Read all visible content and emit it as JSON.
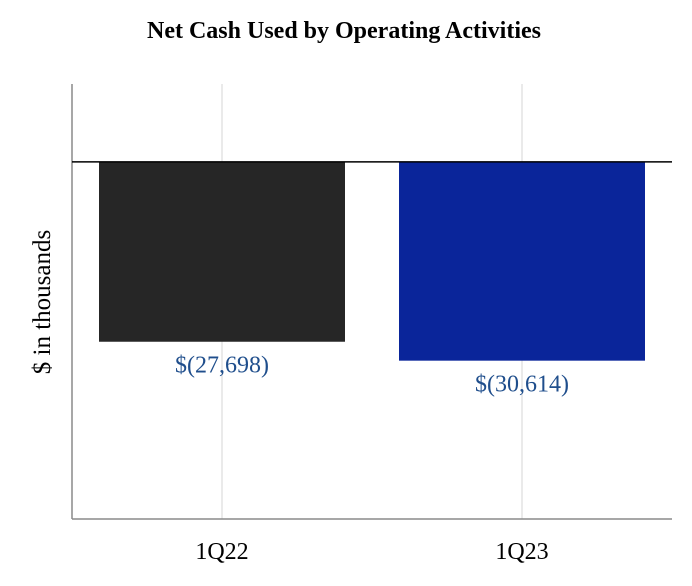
{
  "chart_data": {
    "type": "bar",
    "title": "Net Cash Used by Operating Activities",
    "xlabel": "",
    "ylabel": "$ in thousands",
    "categories": [
      "1Q22",
      "1Q23"
    ],
    "values": [
      -27698,
      -30614
    ],
    "data_labels": [
      "$(27,698)",
      "$(30,614)"
    ],
    "bar_colors": [
      "#262626",
      "#0a259a"
    ],
    "label_color": "#1f4e8c",
    "ylim": [
      -55000,
      12000
    ],
    "grid": "vertical",
    "legend": "none"
  }
}
